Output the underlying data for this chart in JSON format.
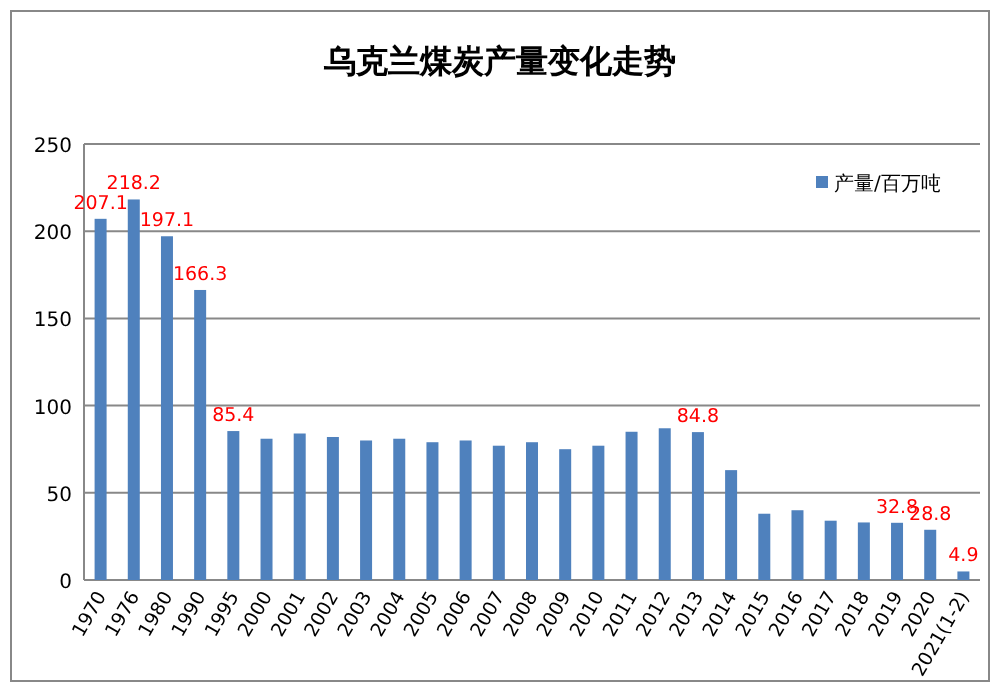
{
  "chart_data": {
    "type": "bar",
    "title": "乌克兰煤炭产量变化走势",
    "categories": [
      "1970",
      "1976",
      "1980",
      "1990",
      "1995",
      "2000",
      "2001",
      "2002",
      "2003",
      "2004",
      "2005",
      "2006",
      "2007",
      "2008",
      "2009",
      "2010",
      "2011",
      "2012",
      "2013",
      "2014",
      "2015",
      "2016",
      "2017",
      "2018",
      "2019",
      "2020",
      "2021(1-2)"
    ],
    "series": [
      {
        "name": "产量/百万吨",
        "color": "#4f81bd",
        "values": [
          207.1,
          218.2,
          197.1,
          166.3,
          85.4,
          81,
          84,
          82,
          80,
          81,
          79,
          80,
          77,
          79,
          75,
          77,
          85,
          87,
          84.8,
          63,
          38,
          40,
          34,
          33,
          32.8,
          28.8,
          4.9
        ],
        "value_labels": [
          "207.1",
          "218.2",
          "197.1",
          "166.3",
          "85.4",
          null,
          null,
          null,
          null,
          null,
          null,
          null,
          null,
          null,
          null,
          null,
          null,
          null,
          "84.8",
          null,
          null,
          null,
          null,
          null,
          "32.8",
          "28.8",
          "4.9"
        ]
      }
    ],
    "ylim": [
      0,
      250
    ],
    "yticks": [
      0,
      50,
      100,
      150,
      200,
      250
    ],
    "grid": "y",
    "legend": "top right"
  }
}
